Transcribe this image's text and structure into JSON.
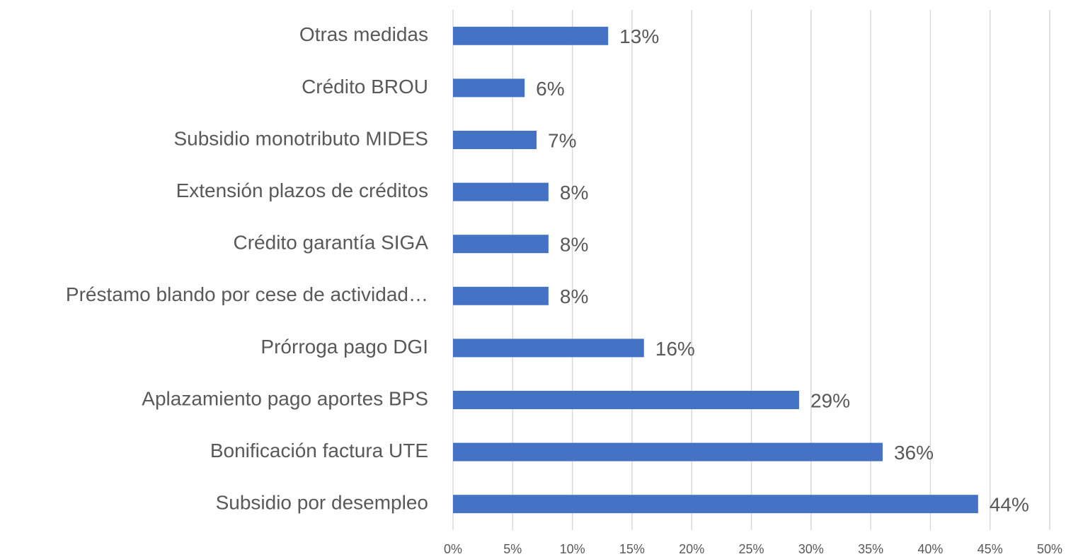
{
  "chart_data": {
    "type": "bar",
    "orientation": "horizontal",
    "categories": [
      "Otras medidas",
      "Crédito BROU",
      "Subsidio monotributo MIDES",
      "Extensión plazos de créditos",
      "Crédito garantía SIGA",
      "Préstamo blando por cese de actividad…",
      "Prórroga pago DGI",
      "Aplazamiento pago aportes BPS",
      "Bonificación factura UTE",
      "Subsidio por desempleo"
    ],
    "values": [
      13,
      6,
      7,
      8,
      8,
      8,
      16,
      29,
      36,
      44
    ],
    "value_labels": [
      "13%",
      "6%",
      "7%",
      "8%",
      "8%",
      "8%",
      "16%",
      "29%",
      "36%",
      "44%"
    ],
    "color": "#4472c4",
    "xlim": [
      0,
      50
    ],
    "xticks": [
      {
        "value": 0,
        "label": "0%"
      },
      {
        "value": 5,
        "label": "5%"
      },
      {
        "value": 10,
        "label": "10%"
      },
      {
        "value": 15,
        "label": "15%"
      },
      {
        "value": 20,
        "label": "20%"
      },
      {
        "value": 25,
        "label": "25%"
      },
      {
        "value": 30,
        "label": "30%"
      },
      {
        "value": 35,
        "label": "35%"
      },
      {
        "value": 40,
        "label": "40%"
      },
      {
        "value": 45,
        "label": "45%"
      },
      {
        "value": 50,
        "label": "50%"
      }
    ],
    "grid": true
  }
}
